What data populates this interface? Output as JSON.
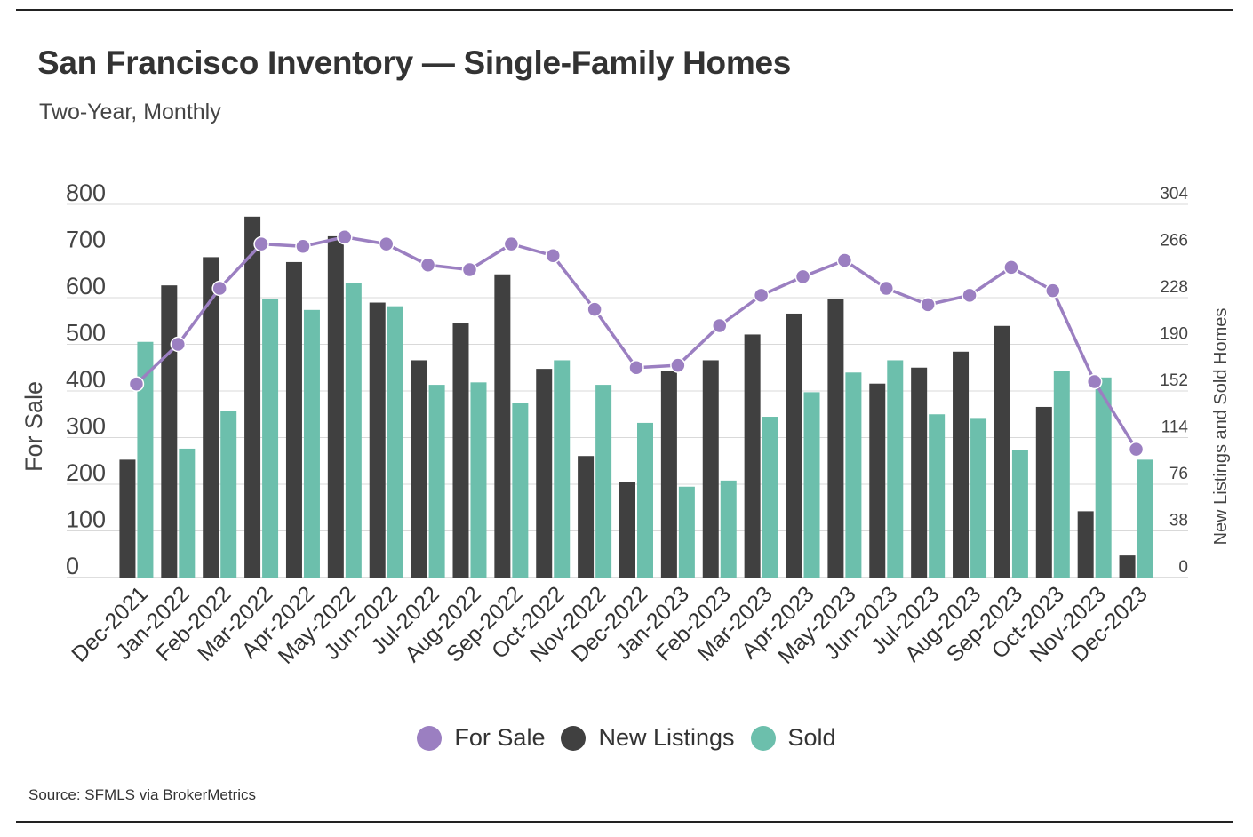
{
  "header": {
    "title": "San Francisco Inventory — Single-Family Homes",
    "subtitle": "Two-Year, Monthly"
  },
  "footer": {
    "source": "Source:  SFMLS via BrokerMetrics"
  },
  "colors": {
    "for_sale": "#9b7fc1",
    "new_listings": "#404040",
    "sold": "#6cbfac",
    "grid": "#d9d9d9"
  },
  "legend": [
    {
      "label": "For Sale",
      "color": "#9b7fc1"
    },
    {
      "label": "New Listings",
      "color": "#404040"
    },
    {
      "label": "Sold",
      "color": "#6cbfac"
    }
  ],
  "chart_data": {
    "type": "bar",
    "categories": [
      "Dec-2021",
      "Jan-2022",
      "Feb-2022",
      "Mar-2022",
      "Apr-2022",
      "May-2022",
      "Jun-2022",
      "Jul-2022",
      "Aug-2022",
      "Sep-2022",
      "Oct-2022",
      "Nov-2022",
      "Dec-2022",
      "Jan-2023",
      "Feb-2023",
      "Mar-2023",
      "Apr-2023",
      "May-2023",
      "Jun-2023",
      "Jul-2023",
      "Aug-2023",
      "Sep-2023",
      "Oct-2023",
      "Nov-2023",
      "Dec-2023"
    ],
    "series": [
      {
        "name": "New Listings",
        "type": "bar",
        "axis": "right",
        "values": [
          96,
          238,
          261,
          294,
          257,
          278,
          224,
          177,
          207,
          247,
          170,
          99,
          78,
          168,
          177,
          198,
          215,
          227,
          158,
          171,
          184,
          205,
          139,
          54,
          18
        ]
      },
      {
        "name": "Sold",
        "type": "bar",
        "axis": "right",
        "values": [
          192,
          105,
          136,
          227,
          218,
          240,
          221,
          157,
          159,
          142,
          177,
          157,
          126,
          74,
          79,
          131,
          151,
          167,
          177,
          133,
          130,
          104,
          168,
          163,
          96
        ]
      },
      {
        "name": "For Sale",
        "type": "line",
        "axis": "left",
        "values": [
          415,
          500,
          620,
          715,
          710,
          730,
          715,
          670,
          660,
          715,
          690,
          575,
          450,
          455,
          540,
          605,
          645,
          680,
          620,
          585,
          605,
          665,
          615,
          420,
          275
        ]
      }
    ],
    "ylabel": "For Sale",
    "y2label": "New Listings and Sold Homes",
    "yticks": [
      0,
      100,
      200,
      300,
      400,
      500,
      600,
      700,
      800
    ],
    "y2ticks": [
      0,
      38,
      76,
      114,
      152,
      190,
      228,
      266,
      304
    ],
    "ylim": [
      0,
      800
    ],
    "y2lim": [
      0,
      304
    ],
    "grid": true,
    "legend_position": "bottom"
  }
}
